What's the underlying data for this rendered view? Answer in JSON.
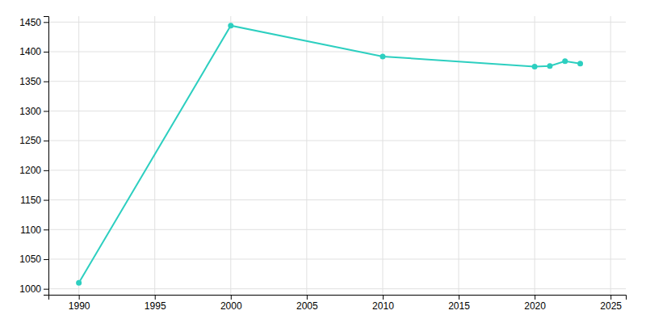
{
  "chart_data": {
    "type": "line",
    "x": [
      1990,
      2000,
      2010,
      2020,
      2021,
      2022,
      2023
    ],
    "values": [
      1010,
      1444,
      1392,
      1375,
      1376,
      1384,
      1380
    ],
    "color": "#2dcfc0",
    "marker": "circle",
    "xlim": [
      1988,
      2026
    ],
    "ylim": [
      990,
      1460
    ],
    "xticks": [
      1990,
      1995,
      2000,
      2005,
      2010,
      2015,
      2020,
      2025
    ],
    "yticks": [
      1000,
      1050,
      1100,
      1150,
      1200,
      1250,
      1300,
      1350,
      1400,
      1450
    ],
    "grid": true
  }
}
